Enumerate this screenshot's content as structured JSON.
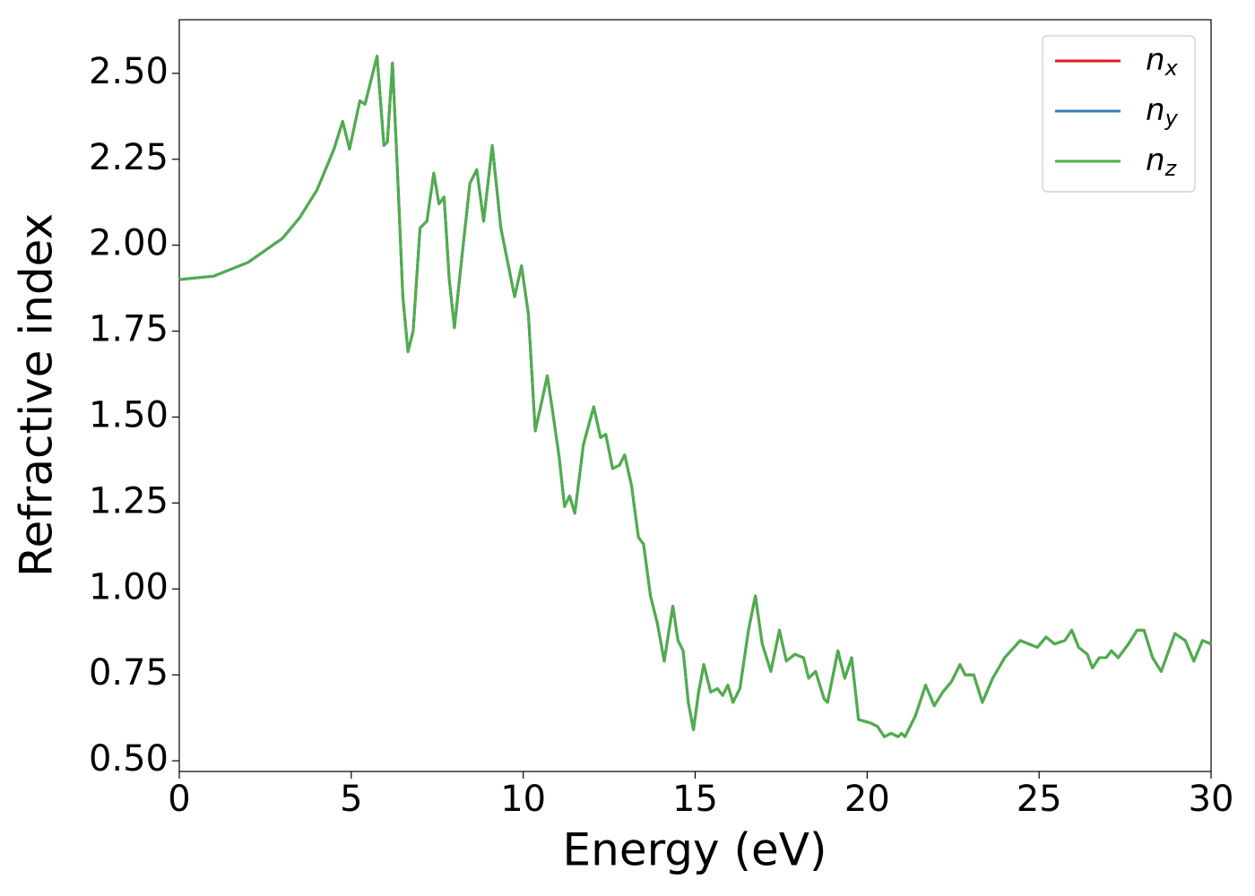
{
  "chart_data": {
    "type": "line",
    "xlabel": "Energy (eV)",
    "ylabel": "Refractive index",
    "x": [
      0,
      1,
      2,
      3,
      3.5,
      4,
      4.5,
      4.75,
      4.95,
      5.25,
      5.4,
      5.6,
      5.75,
      5.95,
      6.05,
      6.2,
      6.35,
      6.5,
      6.65,
      6.8,
      7.0,
      7.2,
      7.4,
      7.55,
      7.7,
      7.85,
      8.0,
      8.2,
      8.45,
      8.65,
      8.85,
      9.1,
      9.35,
      9.55,
      9.75,
      9.95,
      10.15,
      10.35,
      10.55,
      10.7,
      10.85,
      11.05,
      11.2,
      11.35,
      11.5,
      11.75,
      12.05,
      12.25,
      12.4,
      12.6,
      12.8,
      12.95,
      13.15,
      13.35,
      13.5,
      13.7,
      13.9,
      14.1,
      14.35,
      14.5,
      14.65,
      14.8,
      14.95,
      15.1,
      15.25,
      15.45,
      15.65,
      15.8,
      15.95,
      16.1,
      16.3,
      16.55,
      16.75,
      16.95,
      17.2,
      17.45,
      17.65,
      17.9,
      18.15,
      18.3,
      18.5,
      18.75,
      18.85,
      19.15,
      19.35,
      19.55,
      19.75,
      20.1,
      20.3,
      20.5,
      20.7,
      20.9,
      21.0,
      21.1,
      21.4,
      21.7,
      21.95,
      22.2,
      22.45,
      22.7,
      22.85,
      23.1,
      23.35,
      23.65,
      24.0,
      24.45,
      24.7,
      24.95,
      25.2,
      25.45,
      25.75,
      25.95,
      26.15,
      26.4,
      26.55,
      26.75,
      26.95,
      27.1,
      27.3,
      27.6,
      27.85,
      28.05,
      28.3,
      28.55,
      28.95,
      29.25,
      29.5,
      29.75,
      30
    ],
    "series": [
      {
        "name": "n_x",
        "color": "#e41a1c",
        "values": [
          1.9,
          1.91,
          1.95,
          2.02,
          2.08,
          2.16,
          2.28,
          2.36,
          2.28,
          2.42,
          2.41,
          2.49,
          2.55,
          2.29,
          2.3,
          2.53,
          2.2,
          1.85,
          1.69,
          1.75,
          2.05,
          2.07,
          2.21,
          2.12,
          2.14,
          1.9,
          1.76,
          1.95,
          2.18,
          2.22,
          2.07,
          2.29,
          2.05,
          1.95,
          1.85,
          1.94,
          1.8,
          1.46,
          1.55,
          1.62,
          1.52,
          1.38,
          1.24,
          1.27,
          1.22,
          1.42,
          1.53,
          1.44,
          1.45,
          1.35,
          1.36,
          1.39,
          1.3,
          1.15,
          1.13,
          0.98,
          0.9,
          0.79,
          0.95,
          0.85,
          0.82,
          0.67,
          0.59,
          0.7,
          0.78,
          0.7,
          0.71,
          0.69,
          0.72,
          0.67,
          0.71,
          0.88,
          0.98,
          0.84,
          0.76,
          0.88,
          0.79,
          0.81,
          0.8,
          0.74,
          0.76,
          0.68,
          0.67,
          0.82,
          0.74,
          0.8,
          0.62,
          0.61,
          0.6,
          0.57,
          0.58,
          0.57,
          0.58,
          0.57,
          0.63,
          0.72,
          0.66,
          0.7,
          0.73,
          0.78,
          0.75,
          0.75,
          0.67,
          0.74,
          0.8,
          0.85,
          0.84,
          0.83,
          0.86,
          0.84,
          0.85,
          0.88,
          0.83,
          0.81,
          0.77,
          0.8,
          0.8,
          0.82,
          0.8,
          0.84,
          0.88,
          0.88,
          0.8,
          0.76,
          0.87,
          0.85,
          0.79,
          0.85,
          0.84
        ]
      },
      {
        "name": "n_y",
        "color": "#377eb8",
        "values": [
          1.9,
          1.91,
          1.95,
          2.02,
          2.08,
          2.16,
          2.28,
          2.36,
          2.28,
          2.42,
          2.41,
          2.49,
          2.55,
          2.29,
          2.3,
          2.53,
          2.2,
          1.85,
          1.69,
          1.75,
          2.05,
          2.07,
          2.21,
          2.12,
          2.14,
          1.9,
          1.76,
          1.95,
          2.18,
          2.22,
          2.07,
          2.29,
          2.05,
          1.95,
          1.85,
          1.94,
          1.8,
          1.46,
          1.55,
          1.62,
          1.52,
          1.38,
          1.24,
          1.27,
          1.22,
          1.42,
          1.53,
          1.44,
          1.45,
          1.35,
          1.36,
          1.39,
          1.3,
          1.15,
          1.13,
          0.98,
          0.9,
          0.79,
          0.95,
          0.85,
          0.82,
          0.67,
          0.59,
          0.7,
          0.78,
          0.7,
          0.71,
          0.69,
          0.72,
          0.67,
          0.71,
          0.88,
          0.98,
          0.84,
          0.76,
          0.88,
          0.79,
          0.81,
          0.8,
          0.74,
          0.76,
          0.68,
          0.67,
          0.82,
          0.74,
          0.8,
          0.62,
          0.61,
          0.6,
          0.57,
          0.58,
          0.57,
          0.58,
          0.57,
          0.63,
          0.72,
          0.66,
          0.7,
          0.73,
          0.78,
          0.75,
          0.75,
          0.67,
          0.74,
          0.8,
          0.85,
          0.84,
          0.83,
          0.86,
          0.84,
          0.85,
          0.88,
          0.83,
          0.81,
          0.77,
          0.8,
          0.8,
          0.82,
          0.8,
          0.84,
          0.88,
          0.88,
          0.8,
          0.76,
          0.87,
          0.85,
          0.79,
          0.85,
          0.84
        ]
      },
      {
        "name": "n_z",
        "color": "#4daf4a",
        "values": [
          1.9,
          1.91,
          1.95,
          2.02,
          2.08,
          2.16,
          2.28,
          2.36,
          2.28,
          2.42,
          2.41,
          2.49,
          2.55,
          2.29,
          2.3,
          2.53,
          2.2,
          1.85,
          1.69,
          1.75,
          2.05,
          2.07,
          2.21,
          2.12,
          2.14,
          1.9,
          1.76,
          1.95,
          2.18,
          2.22,
          2.07,
          2.29,
          2.05,
          1.95,
          1.85,
          1.94,
          1.8,
          1.46,
          1.55,
          1.62,
          1.52,
          1.38,
          1.24,
          1.27,
          1.22,
          1.42,
          1.53,
          1.44,
          1.45,
          1.35,
          1.36,
          1.39,
          1.3,
          1.15,
          1.13,
          0.98,
          0.9,
          0.79,
          0.95,
          0.85,
          0.82,
          0.67,
          0.59,
          0.7,
          0.78,
          0.7,
          0.71,
          0.69,
          0.72,
          0.67,
          0.71,
          0.88,
          0.98,
          0.84,
          0.76,
          0.88,
          0.79,
          0.81,
          0.8,
          0.74,
          0.76,
          0.68,
          0.67,
          0.82,
          0.74,
          0.8,
          0.62,
          0.61,
          0.6,
          0.57,
          0.58,
          0.57,
          0.58,
          0.57,
          0.63,
          0.72,
          0.66,
          0.7,
          0.73,
          0.78,
          0.75,
          0.75,
          0.67,
          0.74,
          0.8,
          0.85,
          0.84,
          0.83,
          0.86,
          0.84,
          0.85,
          0.88,
          0.83,
          0.81,
          0.77,
          0.8,
          0.8,
          0.82,
          0.8,
          0.84,
          0.88,
          0.88,
          0.8,
          0.76,
          0.87,
          0.85,
          0.79,
          0.85,
          0.84
        ]
      }
    ],
    "xlim": [
      0,
      30
    ],
    "xticks": [
      0,
      5,
      10,
      15,
      20,
      25,
      30
    ],
    "ylim": [
      0.469,
      2.656
    ],
    "yticks": [
      {
        "value": 0.5,
        "label": "0.50"
      },
      {
        "value": 0.75,
        "label": "0.75"
      },
      {
        "value": 1.0,
        "label": "1.00"
      },
      {
        "value": 1.25,
        "label": "1.25"
      },
      {
        "value": 1.5,
        "label": "1.50"
      },
      {
        "value": 1.75,
        "label": "1.75"
      },
      {
        "value": 2.0,
        "label": "2.00"
      },
      {
        "value": 2.25,
        "label": "2.25"
      },
      {
        "value": 2.5,
        "label": "2.50"
      }
    ],
    "grid": false,
    "legend": "upper right"
  }
}
